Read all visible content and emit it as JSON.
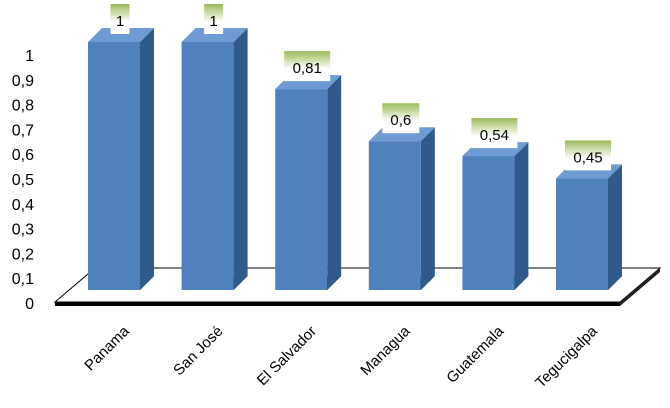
{
  "chart_data": {
    "type": "bar",
    "style": "3d-column",
    "categories": [
      "Panama",
      "San José",
      "El Salvador",
      "Managua",
      "Guatemala",
      "Tegucigalpa"
    ],
    "values": [
      1,
      1,
      0.81,
      0.6,
      0.54,
      0.45
    ],
    "data_labels": [
      "1",
      "1",
      "0,81",
      "0,6",
      "0,54",
      "0,45"
    ],
    "y_ticks": [
      "0",
      "0,1",
      "0,2",
      "0,3",
      "0,4",
      "0,5",
      "0,6",
      "0,7",
      "0,8",
      "0,9",
      "1"
    ],
    "ylim": [
      0,
      1
    ],
    "title": "",
    "xlabel": "",
    "ylabel": "",
    "grid": false,
    "legend": "none",
    "colors": {
      "bar_front": "#4f81bd",
      "bar_side": "#2f5a8c",
      "bar_top": "#6f9bd4",
      "label_box_top": "#9bbb59",
      "label_box_bottom": "#ffffff",
      "floor_top": "#ffffff",
      "floor_edge": "#000000"
    }
  }
}
